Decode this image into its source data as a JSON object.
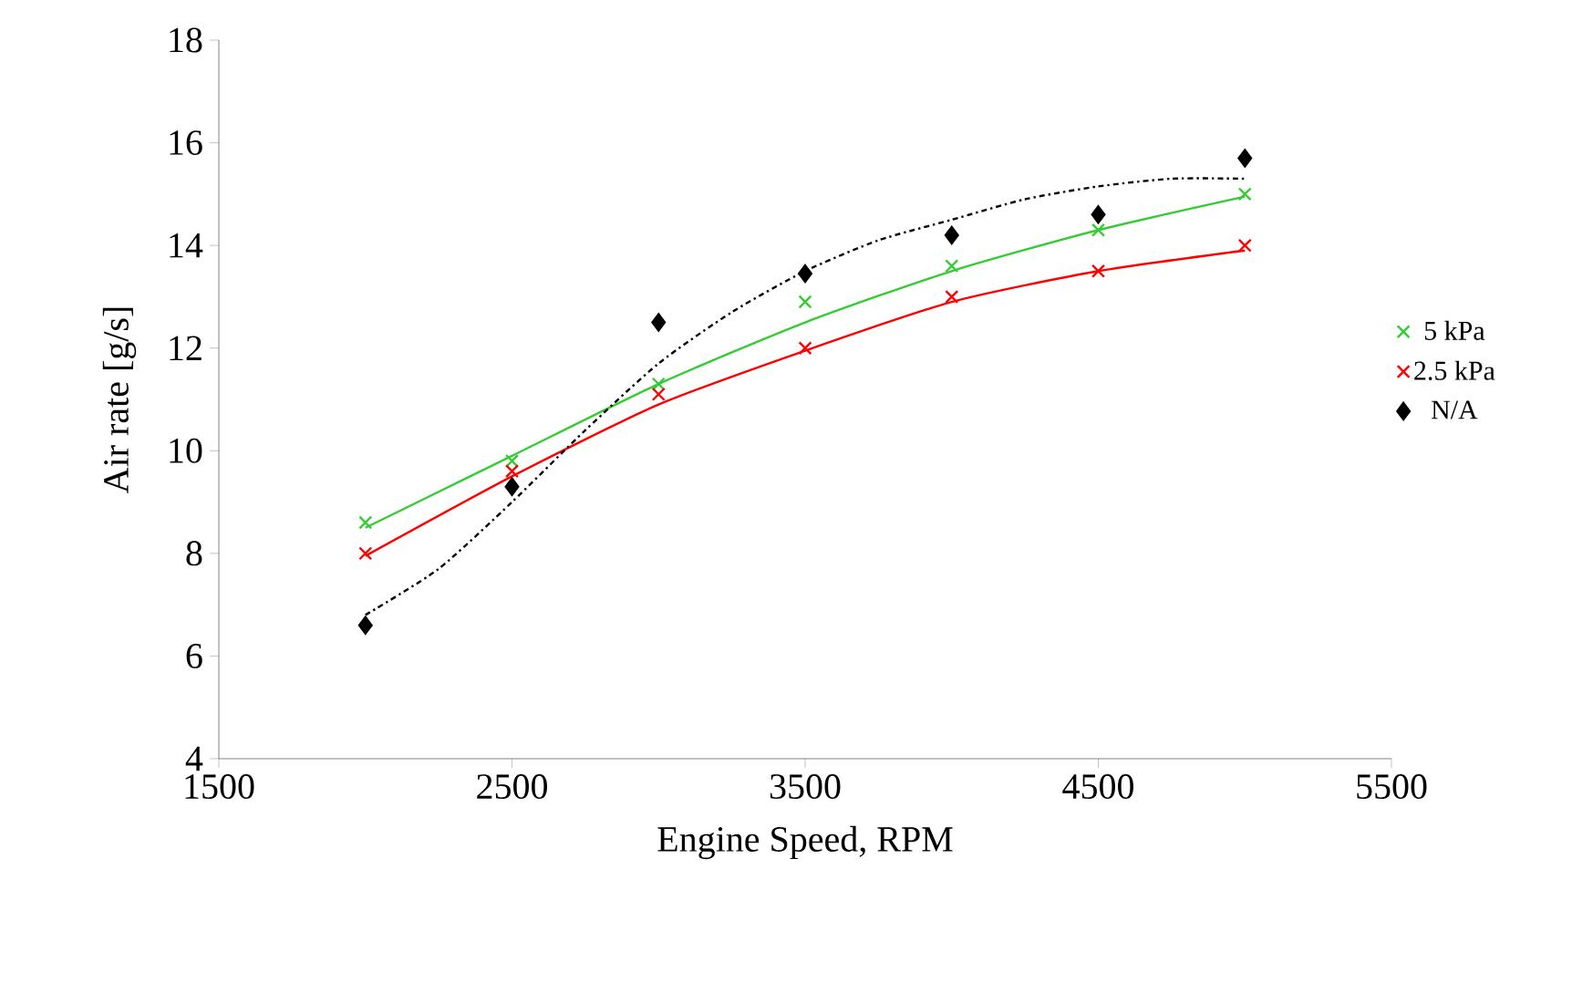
{
  "chart_data": {
    "type": "scatter",
    "xlabel": "Engine Speed, RPM",
    "ylabel": "Air rate [g/s]",
    "x": [
      2000,
      2500,
      3000,
      3500,
      4000,
      4500,
      5000
    ],
    "xlim": [
      1500,
      5500
    ],
    "xticks": [
      1500,
      2500,
      3500,
      4500,
      5500
    ],
    "ylim": [
      4,
      18
    ],
    "yticks": [
      4,
      6,
      8,
      10,
      12,
      14,
      16,
      18
    ],
    "grid": false,
    "legend": "right",
    "series": [
      {
        "name": "5 kPa",
        "color": "#33cc33",
        "marker": "cross",
        "values": [
          8.6,
          9.8,
          11.3,
          12.9,
          13.6,
          14.3,
          15.0
        ]
      },
      {
        "name": "2.5 kPa",
        "color": "#ff0000",
        "marker": "cross",
        "values": [
          8.0,
          9.6,
          11.1,
          12.0,
          13.0,
          13.5,
          14.0
        ]
      },
      {
        "name": "N/A",
        "color": "#000000",
        "marker": "diamond",
        "values": [
          6.6,
          9.3,
          12.5,
          13.45,
          14.2,
          14.6,
          15.7
        ]
      },
      {
        "type": "line",
        "color": "#33cc33",
        "line_style": "solid",
        "marker": "none",
        "x": [
          2000,
          2500,
          3000,
          3500,
          4000,
          4500,
          5000
        ],
        "values": [
          8.5,
          9.9,
          11.3,
          12.5,
          13.5,
          14.3,
          14.95
        ]
      },
      {
        "type": "line",
        "color": "#ff0000",
        "line_style": "solid",
        "marker": "none",
        "x": [
          2000,
          2500,
          3000,
          3500,
          4000,
          4500,
          5000
        ],
        "values": [
          7.95,
          9.5,
          10.9,
          11.95,
          12.9,
          13.5,
          13.9
        ]
      },
      {
        "type": "line",
        "color": "#000000",
        "line_style": "dashed",
        "marker": "none",
        "x": [
          2000,
          2250,
          2500,
          2750,
          3000,
          3250,
          3500,
          3750,
          4000,
          4250,
          4500,
          4750,
          5000
        ],
        "values": [
          6.8,
          7.7,
          9.0,
          10.4,
          11.7,
          12.7,
          13.5,
          14.1,
          14.5,
          14.9,
          15.15,
          15.3,
          15.3
        ]
      }
    ]
  }
}
